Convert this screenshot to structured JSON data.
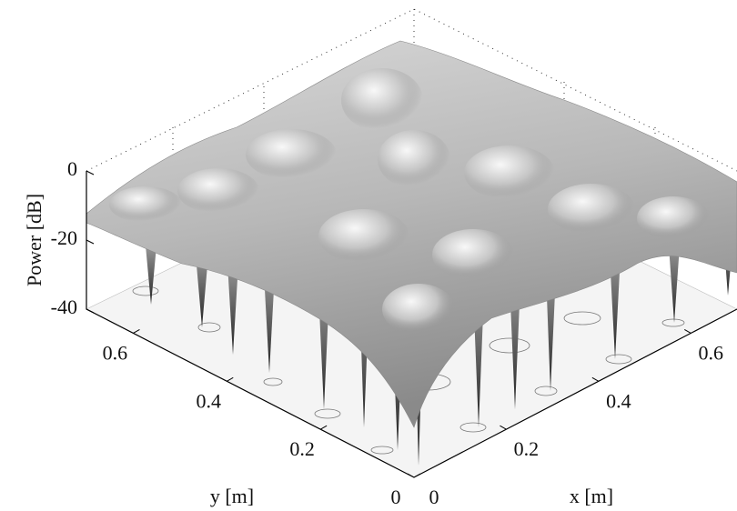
{
  "chart_data": {
    "type": "surface3d",
    "xlabel": "x [m]",
    "ylabel": "y [m]",
    "zlabel": "Power [dB]",
    "xlim": [
      0,
      0.7
    ],
    "ylim": [
      0,
      0.7
    ],
    "zlim": [
      -40,
      0
    ],
    "xticks": [
      0,
      0.2,
      0.4,
      0.6
    ],
    "yticks": [
      0,
      0.2,
      0.4,
      0.6
    ],
    "zticks": [
      0,
      -20,
      -40
    ],
    "colormap": "gray"
  }
}
